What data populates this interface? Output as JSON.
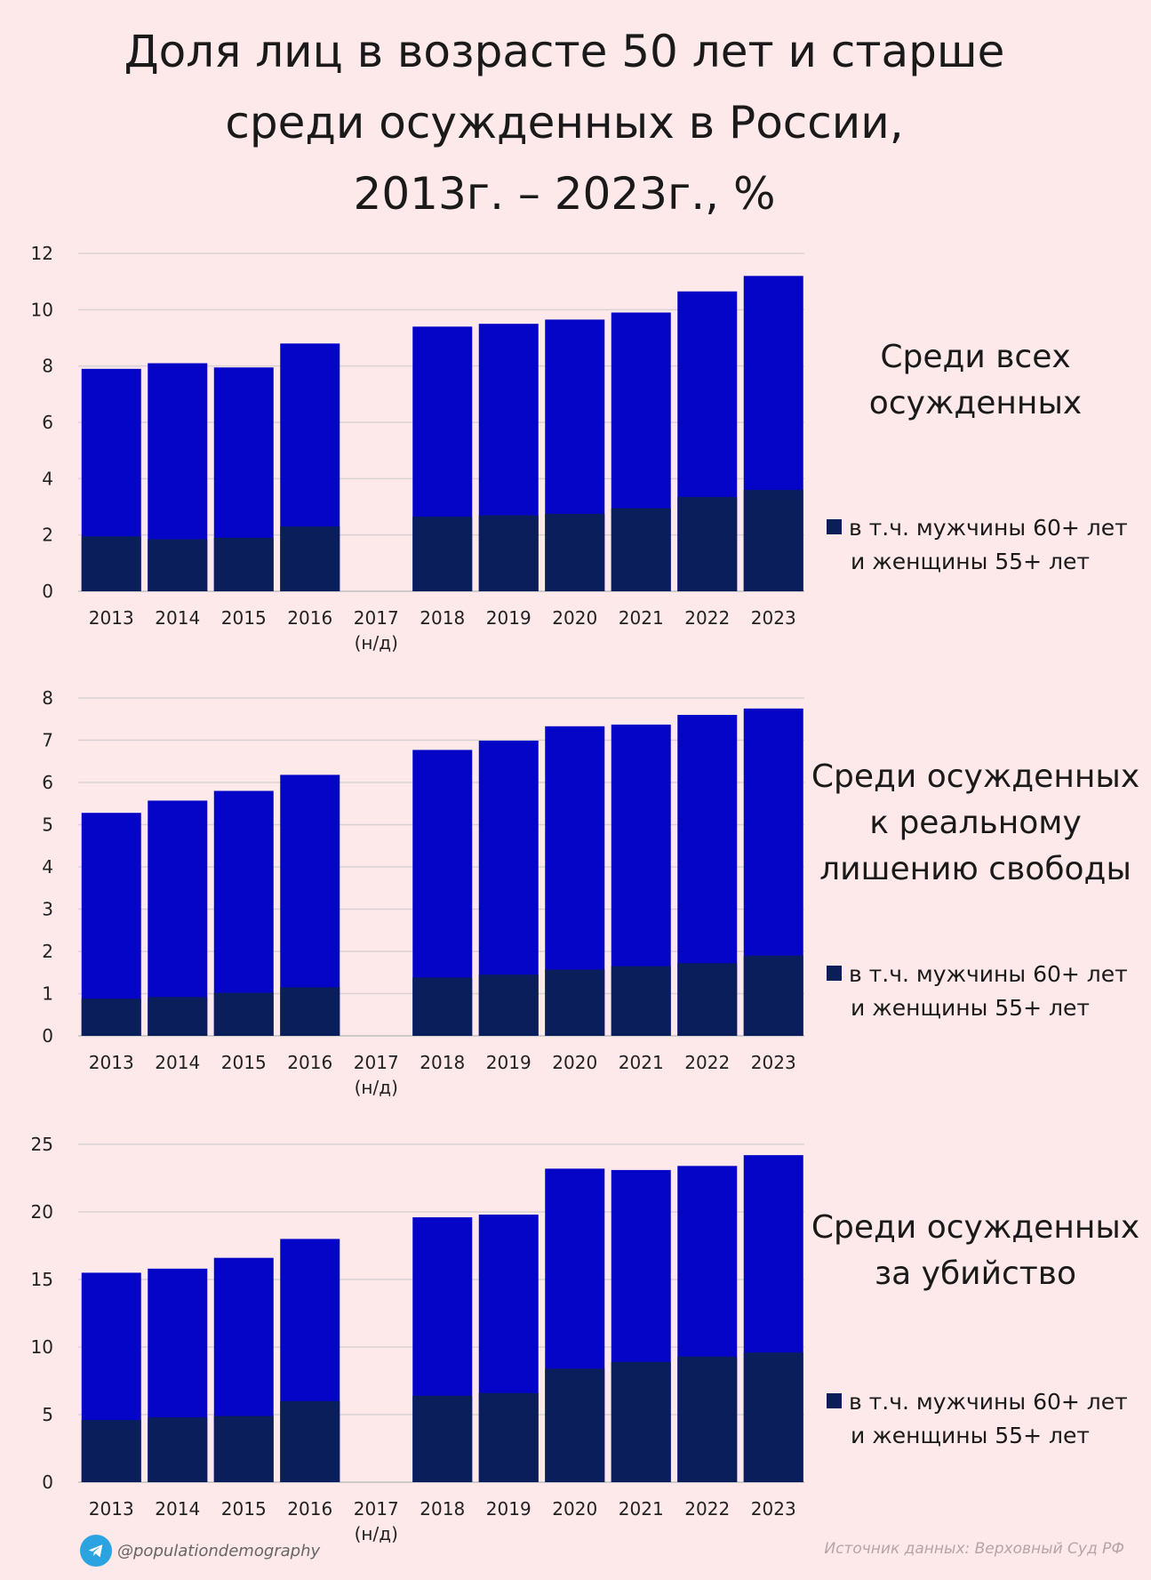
{
  "title": {
    "line1": "Доля лиц в возрасте 50 лет и старше",
    "line2": "среди осужденных в России,",
    "line3": "2013г. – 2023г., %"
  },
  "colors": {
    "total": "#0505c8",
    "sub": "#0a1e5c",
    "grid": "#d9d2d4",
    "axis": "#bfbfbf"
  },
  "chart_data": [
    {
      "type": "bar",
      "stacked": "overlay",
      "title": "Среди всех осужденных",
      "categories": [
        "2013",
        "2014",
        "2015",
        "2016",
        "2017\n(н/д)",
        "2018",
        "2019",
        "2020",
        "2021",
        "2022",
        "2023"
      ],
      "ylim": [
        0,
        12
      ],
      "yticks": [
        0,
        2,
        4,
        6,
        8,
        10,
        12
      ],
      "series": [
        {
          "name": "50 лет и старше",
          "values": [
            7.9,
            8.1,
            7.95,
            8.8,
            null,
            9.4,
            9.5,
            9.65,
            9.9,
            10.65,
            11.2
          ]
        },
        {
          "name": "в т.ч. мужчины 60+ лет и женщины 55+ лет",
          "values": [
            1.95,
            1.85,
            1.9,
            2.3,
            null,
            2.65,
            2.7,
            2.75,
            2.95,
            3.35,
            3.6
          ]
        }
      ],
      "label_lines": [
        "Среди всех",
        "осужденных"
      ],
      "legend_lines": [
        "в т.ч. мужчины 60+ лет",
        "и женщины 55+ лет"
      ]
    },
    {
      "type": "bar",
      "stacked": "overlay",
      "title": "Среди осужденных к реальному лишению свободы",
      "categories": [
        "2013",
        "2014",
        "2015",
        "2016",
        "2017\n(н/д)",
        "2018",
        "2019",
        "2020",
        "2021",
        "2022",
        "2023"
      ],
      "ylim": [
        0,
        8
      ],
      "yticks": [
        0,
        1,
        2,
        3,
        4,
        5,
        6,
        7,
        8
      ],
      "series": [
        {
          "name": "50 лет и старше",
          "values": [
            5.28,
            5.57,
            5.8,
            6.18,
            null,
            6.77,
            6.99,
            7.33,
            7.37,
            7.6,
            7.75
          ]
        },
        {
          "name": "в т.ч. мужчины 60+ лет и женщины 55+ лет",
          "values": [
            0.88,
            0.92,
            1.02,
            1.15,
            null,
            1.38,
            1.45,
            1.57,
            1.65,
            1.72,
            1.9
          ]
        }
      ],
      "label_lines": [
        "Среди осужденных",
        "к реальному",
        "лишению свободы"
      ],
      "legend_lines": [
        "в т.ч. мужчины 60+ лет",
        "и женщины 55+ лет"
      ]
    },
    {
      "type": "bar",
      "stacked": "overlay",
      "title": "Среди осужденных за убийство",
      "categories": [
        "2013",
        "2014",
        "2015",
        "2016",
        "2017\n(н/д)",
        "2018",
        "2019",
        "2020",
        "2021",
        "2022",
        "2023"
      ],
      "ylim": [
        0,
        25
      ],
      "yticks": [
        0,
        5,
        10,
        15,
        20,
        25
      ],
      "series": [
        {
          "name": "50 лет и старше",
          "values": [
            15.5,
            15.8,
            16.6,
            18.0,
            null,
            19.6,
            19.8,
            23.2,
            23.1,
            23.4,
            24.2
          ]
        },
        {
          "name": "в т.ч. мужчины 60+ лет и женщины 55+ лет",
          "values": [
            4.6,
            4.8,
            4.9,
            6.0,
            null,
            6.4,
            6.6,
            8.4,
            8.9,
            9.3,
            9.6
          ]
        }
      ],
      "label_lines": [
        "Среди осужденных",
        "за убийство"
      ],
      "legend_lines": [
        "в т.ч. мужчины 60+ лет",
        "и женщины 55+ лет"
      ]
    }
  ],
  "footer": {
    "handle": "@populationdemography",
    "source": "Источник данных:  Верховный Суд РФ"
  }
}
